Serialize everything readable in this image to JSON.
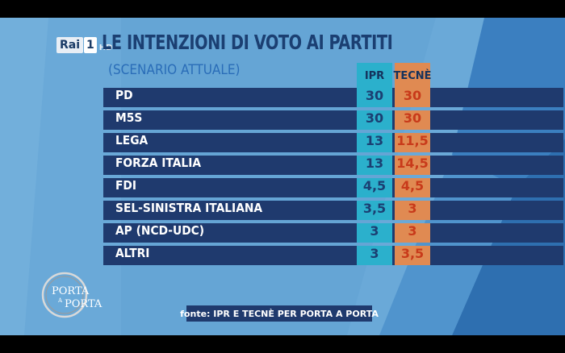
{
  "broadcast": {
    "channel_name": "Rai",
    "channel_number": "1",
    "channel_quality": "HD",
    "show_logo": [
      "PORTA",
      "A",
      "PORTA"
    ]
  },
  "chart_data": {
    "type": "table",
    "title": "LE INTENZIONI DI VOTO AI PARTITI",
    "subtitle": "(SCENARIO ATTUALE)",
    "columns": [
      "IPR",
      "TECNÈ"
    ],
    "rows": [
      {
        "party": "PD",
        "values": [
          "30",
          "30"
        ]
      },
      {
        "party": "M5S",
        "values": [
          "30",
          "30"
        ]
      },
      {
        "party": "LEGA",
        "values": [
          "13",
          "11,5"
        ]
      },
      {
        "party": "FORZA ITALIA",
        "values": [
          "13",
          "14,5"
        ]
      },
      {
        "party": "FDI",
        "values": [
          "4,5",
          "4,5"
        ]
      },
      {
        "party": "SEL-SINISTRA ITALIANA",
        "values": [
          "3,5",
          "3"
        ]
      },
      {
        "party": "AP (NCD-UDC)",
        "values": [
          "3",
          "3"
        ]
      },
      {
        "party": "ALTRI",
        "values": [
          "3",
          "3,5"
        ]
      }
    ]
  },
  "source": "fonte: IPR E TECNÈ PER PORTA A PORTA",
  "colors": {
    "background": "#6aa9d8",
    "row": "#1f3a6e",
    "ipr": "#2bb0cc",
    "tecne": "#e08a52",
    "tecne_text": "#c83a1a"
  }
}
